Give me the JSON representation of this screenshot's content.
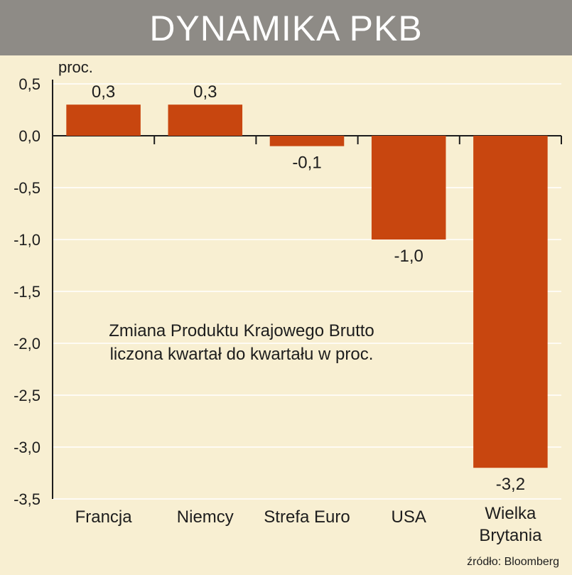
{
  "title": "DYNAMIKA PKB",
  "source": "źródło: Bloomberg",
  "chart_data": {
    "type": "bar",
    "unit_label": "proc.",
    "categories": [
      "Francja",
      "Niemcy",
      "Strefa Euro",
      "USA",
      "Wielka Brytania"
    ],
    "values": [
      0.3,
      0.3,
      -0.1,
      -1.0,
      -3.2
    ],
    "value_labels": [
      "0,3",
      "0,3",
      "-0,1",
      "-1,0",
      "-3,2"
    ],
    "ylim": [
      -3.5,
      0.5
    ],
    "yticks": [
      0.5,
      0.0,
      -0.5,
      -1.0,
      -1.5,
      -2.0,
      -2.5,
      -3.0,
      -3.5
    ],
    "ytick_labels": [
      "0,5",
      "0,0",
      "-0,5",
      "-1,0",
      "-1,5",
      "-2,0",
      "-2,5",
      "-3,0",
      "-3,5"
    ],
    "annotation": [
      "Zmiana Produktu Krajowego Brutto",
      "liczona kwartał do kwartału w proc."
    ],
    "colors": {
      "background": "#f8efd2",
      "title_bar": "#8e8b86",
      "bar": "#c8460f",
      "grid": "#ffffff",
      "axis": "#1d1d1d",
      "text": "#1d1d1d"
    }
  }
}
